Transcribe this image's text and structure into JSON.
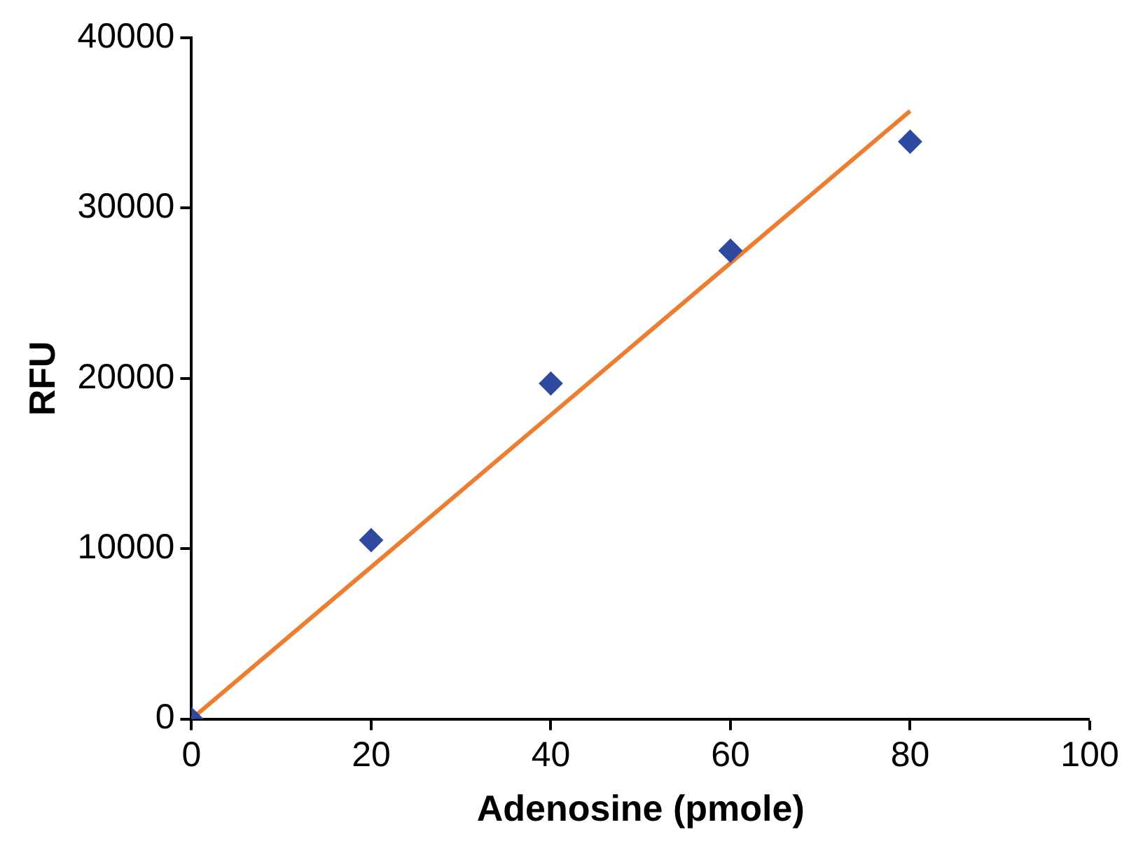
{
  "chart_data": {
    "type": "scatter",
    "xlabel": "Adenosine (pmole)",
    "ylabel": "RFU",
    "xlim": [
      0,
      100
    ],
    "xticks": [
      0,
      20,
      40,
      60,
      80,
      100
    ],
    "ylim": [
      0,
      40000
    ],
    "yticks": [
      0,
      10000,
      20000,
      30000,
      40000
    ],
    "series": [
      {
        "type": "line",
        "color": "#ed7d31",
        "x": [
          0,
          80
        ],
        "values": [
          0,
          35700
        ],
        "marker": "none",
        "line_style": "solid"
      },
      {
        "color": "#2e4a9e",
        "x": [
          0,
          20,
          40,
          60,
          80
        ],
        "values": [
          0,
          10500,
          19700,
          27500,
          33900
        ],
        "marker": "diamond"
      }
    ]
  }
}
